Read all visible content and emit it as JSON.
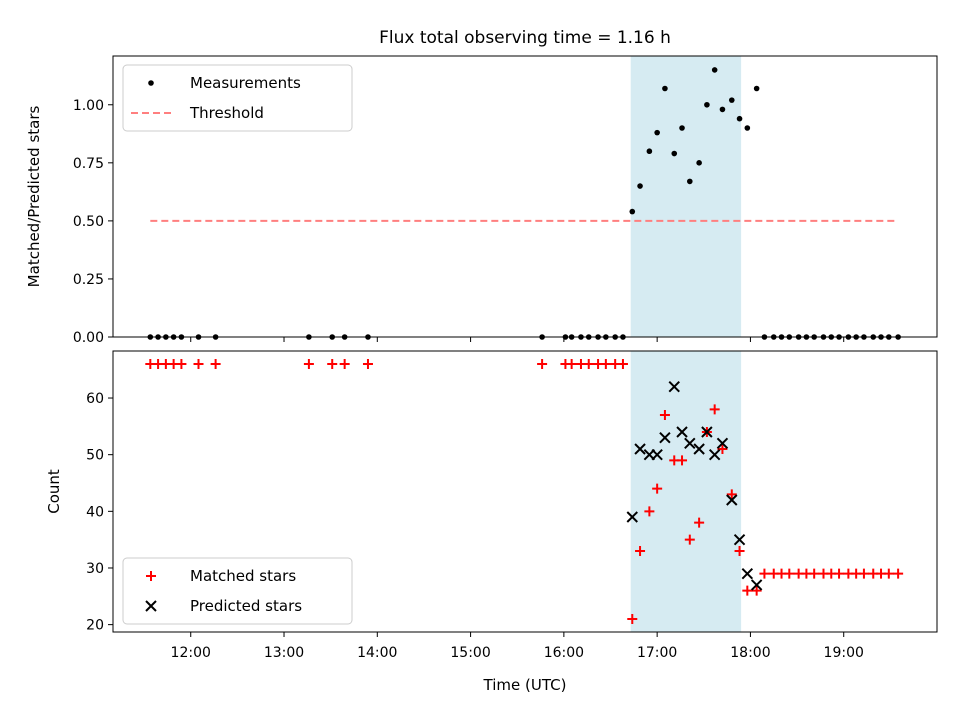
{
  "title": "Flux total observing time = 1.16 h",
  "colors": {
    "measurements": "#000000",
    "threshold": "#ff7f7f",
    "matched": "#ff0000",
    "predicted": "#000000",
    "shade": "#add8e6"
  },
  "chart_data": [
    {
      "type": "scatter",
      "ylabel": "Matched/Predicted stars",
      "ylim": [
        0,
        1.21
      ],
      "yticks": [
        0.0,
        0.25,
        0.5,
        0.75,
        1.0
      ],
      "ytick_labels": [
        "0.00",
        "0.25",
        "0.50",
        "0.75",
        "1.00"
      ],
      "xlim": [
        "11:10",
        "20:00"
      ],
      "xticks": [
        "12:00",
        "13:00",
        "14:00",
        "15:00",
        "16:00",
        "17:00",
        "18:00",
        "19:00"
      ],
      "shaded_interval": [
        "16:43",
        "17:54"
      ],
      "legend": {
        "position": "upper-left",
        "entries": [
          "Measurements",
          "Threshold"
        ]
      },
      "series": [
        {
          "name": "Measurements",
          "marker": "dot",
          "x": [
            "11:34",
            "11:39",
            "11:44",
            "11:49",
            "11:54",
            "12:05",
            "12:16",
            "13:16",
            "13:31",
            "13:39",
            "13:54",
            "15:46",
            "16:01",
            "16:05",
            "16:11",
            "16:16",
            "16:22",
            "16:27",
            "16:33",
            "16:38",
            "16:44",
            "16:49",
            "16:55",
            "17:00",
            "17:05",
            "17:11",
            "17:16",
            "17:21",
            "17:27",
            "17:32",
            "17:37",
            "17:42",
            "17:48",
            "17:53",
            "17:58",
            "18:04",
            "18:09",
            "18:15",
            "18:20",
            "18:25",
            "18:31",
            "18:36",
            "18:41",
            "18:47",
            "18:52",
            "18:57",
            "19:03",
            "19:08",
            "19:13",
            "19:19",
            "19:24",
            "19:29",
            "19:35"
          ],
          "y": [
            0,
            0,
            0,
            0,
            0,
            0,
            0,
            0,
            0,
            0,
            0,
            0,
            0,
            0,
            0,
            0,
            0,
            0,
            0,
            0,
            0.54,
            0.65,
            0.8,
            0.88,
            1.07,
            0.79,
            0.9,
            0.67,
            0.75,
            1.0,
            1.15,
            0.98,
            1.02,
            0.94,
            0.9,
            1.07,
            0,
            0,
            0,
            0,
            0,
            0,
            0,
            0,
            0,
            0,
            0,
            0,
            0,
            0,
            0,
            0,
            0
          ]
        },
        {
          "name": "Threshold",
          "style": "dashed",
          "x": [
            "11:34",
            "19:35"
          ],
          "y": [
            0.5,
            0.5
          ]
        }
      ]
    },
    {
      "type": "scatter",
      "ylabel": "Count",
      "xlabel": "Time (UTC)",
      "ylim": [
        18.7,
        68.3
      ],
      "yticks": [
        20,
        30,
        40,
        50,
        60
      ],
      "xlim": [
        "11:10",
        "20:00"
      ],
      "xticks": [
        "12:00",
        "13:00",
        "14:00",
        "15:00",
        "16:00",
        "17:00",
        "18:00",
        "19:00"
      ],
      "shaded_interval": [
        "16:43",
        "17:54"
      ],
      "legend": {
        "position": "lower-left",
        "entries": [
          "Matched stars",
          "Predicted stars"
        ]
      },
      "series": [
        {
          "name": "Matched stars",
          "marker": "plus",
          "x": [
            "11:34",
            "11:39",
            "11:44",
            "11:49",
            "11:54",
            "12:05",
            "12:16",
            "13:16",
            "13:31",
            "13:39",
            "13:54",
            "15:46",
            "16:01",
            "16:05",
            "16:11",
            "16:16",
            "16:22",
            "16:27",
            "16:33",
            "16:38",
            "16:44",
            "16:49",
            "16:55",
            "17:00",
            "17:05",
            "17:11",
            "17:16",
            "17:21",
            "17:27",
            "17:32",
            "17:37",
            "17:42",
            "17:48",
            "17:53",
            "17:58",
            "18:04",
            "18:09",
            "18:15",
            "18:20",
            "18:25",
            "18:31",
            "18:36",
            "18:41",
            "18:47",
            "18:52",
            "18:57",
            "19:03",
            "19:08",
            "19:13",
            "19:19",
            "19:24",
            "19:29",
            "19:35"
          ],
          "y": [
            66,
            66,
            66,
            66,
            66,
            66,
            66,
            66,
            66,
            66,
            66,
            66,
            66,
            66,
            66,
            66,
            66,
            66,
            66,
            66,
            21,
            33,
            40,
            44,
            57,
            49,
            49,
            35,
            38,
            54,
            58,
            51,
            43,
            33,
            26,
            26,
            29,
            29,
            29,
            29,
            29,
            29,
            29,
            29,
            29,
            29,
            29,
            29,
            29,
            29,
            29,
            29,
            29
          ]
        },
        {
          "name": "Predicted stars",
          "marker": "x",
          "x": [
            "16:44",
            "16:49",
            "16:55",
            "17:00",
            "17:05",
            "17:11",
            "17:16",
            "17:21",
            "17:27",
            "17:32",
            "17:37",
            "17:42",
            "17:48",
            "17:53",
            "17:58",
            "18:04"
          ],
          "y": [
            39,
            51,
            50,
            50,
            53,
            62,
            54,
            52,
            51,
            54,
            50,
            52,
            42,
            35,
            29,
            27
          ]
        }
      ]
    }
  ]
}
